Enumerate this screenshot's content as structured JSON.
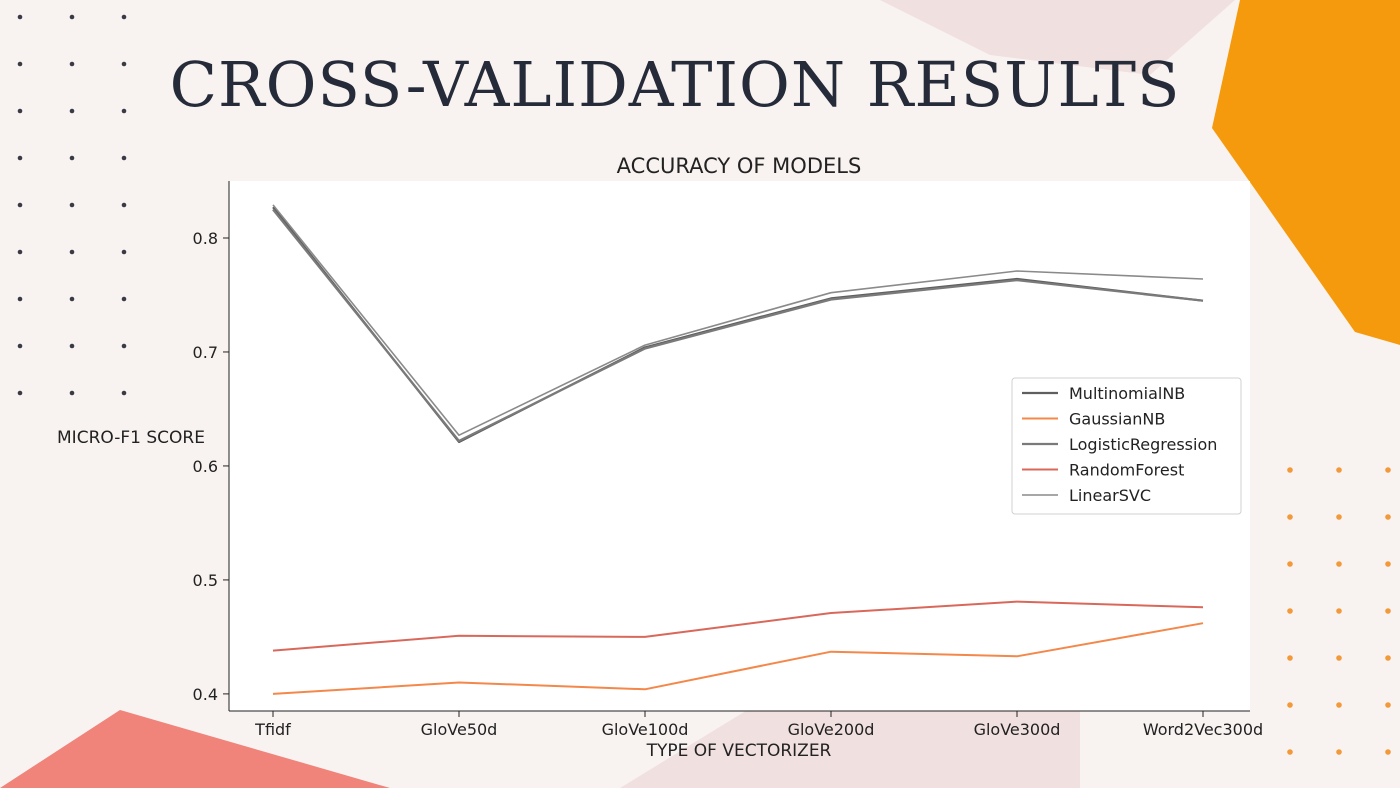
{
  "slide": {
    "title": "CROSS-VALIDATION RESULTS"
  },
  "colors": {
    "accent_orange": "#f59a0c",
    "accent_coral": "#f0837a",
    "pale_pink": "#f1e0e0",
    "dot_dark": "#3a3a45",
    "dot_orange": "#f29a3a"
  },
  "chart_data": {
    "type": "line",
    "title": "ACCURACY OF MODELS",
    "xlabel": "TYPE OF VECTORIZER",
    "ylabel": "MICRO-F1 SCORE",
    "categories": [
      "Tfidf",
      "GloVe50d",
      "GloVe100d",
      "GloVe200d",
      "GloVe300d",
      "Word2Vec300d"
    ],
    "ylim": [
      0.385,
      0.85
    ],
    "yticks": [
      0.4,
      0.5,
      0.6,
      0.7,
      0.8
    ],
    "ytick_labels": [
      "0.4",
      "0.5",
      "0.6",
      "0.7",
      "0.8"
    ],
    "grid": false,
    "legend_position": "right",
    "series": [
      {
        "name": "MultinomialNB",
        "color": "#5f5f5f",
        "width": 2.2,
        "values": [
          0.827,
          0.621,
          0.704,
          0.747,
          0.764,
          0.745
        ]
      },
      {
        "name": "GaussianNB",
        "color": "#f4874a",
        "width": 2,
        "values": [
          0.4,
          0.41,
          0.404,
          0.437,
          0.433,
          0.462
        ]
      },
      {
        "name": "LogisticRegression",
        "color": "#7a7a7a",
        "width": 2.2,
        "values": [
          0.825,
          0.622,
          0.703,
          0.746,
          0.763,
          0.745
        ]
      },
      {
        "name": "RandomForest",
        "color": "#d9685a",
        "width": 2,
        "values": [
          0.438,
          0.451,
          0.45,
          0.471,
          0.481,
          0.476
        ]
      },
      {
        "name": "LinearSVC",
        "color": "#8a8a8a",
        "width": 1.6,
        "values": [
          0.829,
          0.627,
          0.706,
          0.752,
          0.771,
          0.764
        ]
      }
    ]
  }
}
